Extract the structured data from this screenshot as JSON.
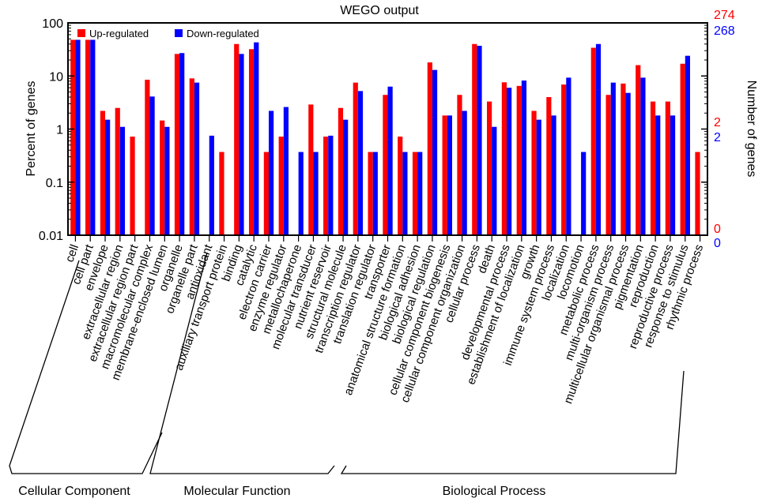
{
  "chart_data": {
    "type": "bar",
    "title": "WEGO output",
    "ylabel_left": "Percent of genes",
    "ylabel_right": "Number of genes",
    "yscale": "log",
    "ylim": [
      0.01,
      100
    ],
    "yticks": [
      "0.01",
      "0.1",
      "1",
      "10",
      "100"
    ],
    "right_axis": {
      "up_total": "274",
      "down_total": "268",
      "up_mid": "2",
      "down_mid": "2",
      "up_min": "0",
      "down_min": "0"
    },
    "legend": [
      "Up-regulated",
      "Down-regulated"
    ],
    "colors": {
      "up": "#ff0000",
      "down": "#0000ff"
    },
    "groups": [
      {
        "name": "Cellular Component",
        "start": 0,
        "end": 9
      },
      {
        "name": "Molecular Function",
        "start": 10,
        "end": 21
      },
      {
        "name": "Biological Process",
        "start": 22,
        "end": 43
      }
    ],
    "categories": [
      "cell",
      "cell part",
      "envelope",
      "extracellular region",
      "extracellular region part",
      "macromolecular complex",
      "membrane-enclosed lumen",
      "organelle",
      "organelle part",
      "antioxidant",
      "auxiliary transport protein",
      "binding",
      "catalytic",
      "electron carrier",
      "enzyme regulator",
      "metallochaperone",
      "molecular transducer",
      "nutrient reservoir",
      "structural molecule",
      "transcription regulator",
      "translation regulator",
      "transporter",
      "anatomical structure formation",
      "biological adhesion",
      "biological regulation",
      "cellular component biogenesis",
      "cellular component organization",
      "cellular process",
      "death",
      "developmental process",
      "establishment of localization",
      "growth",
      "immune system process",
      "localization",
      "locomotion",
      "metabolic process",
      "multi-organism process",
      "multicellular organismal process",
      "pigmentation",
      "reproduction",
      "reproductive process",
      "response to stimulus",
      "rhythmic process"
    ],
    "series": [
      {
        "name": "Up-regulated",
        "values": [
          48,
          48,
          2.2,
          2.5,
          0.72,
          8.5,
          1.45,
          26,
          9,
          null,
          0.37,
          40,
          32,
          0.37,
          0.72,
          null,
          2.9,
          0.72,
          2.5,
          7.5,
          0.37,
          4.4,
          0.72,
          0.37,
          18,
          1.8,
          4.4,
          40,
          3.3,
          7.6,
          6.5,
          2.2,
          4,
          6.9,
          null,
          34,
          4.4,
          7.2,
          16,
          3.3,
          3.3,
          17,
          0.37
        ]
      },
      {
        "name": "Down-regulated",
        "values": [
          48,
          48,
          1.5,
          1.1,
          null,
          4.1,
          1.1,
          27,
          7.5,
          0.75,
          null,
          26,
          43,
          2.2,
          2.6,
          0.37,
          0.37,
          0.75,
          1.5,
          5.2,
          0.37,
          6.3,
          0.37,
          0.37,
          13,
          1.8,
          2.2,
          37,
          1.1,
          6,
          8.2,
          1.5,
          1.8,
          9.3,
          0.37,
          40,
          7.5,
          4.8,
          9.3,
          1.8,
          1.8,
          24,
          null
        ]
      }
    ]
  }
}
